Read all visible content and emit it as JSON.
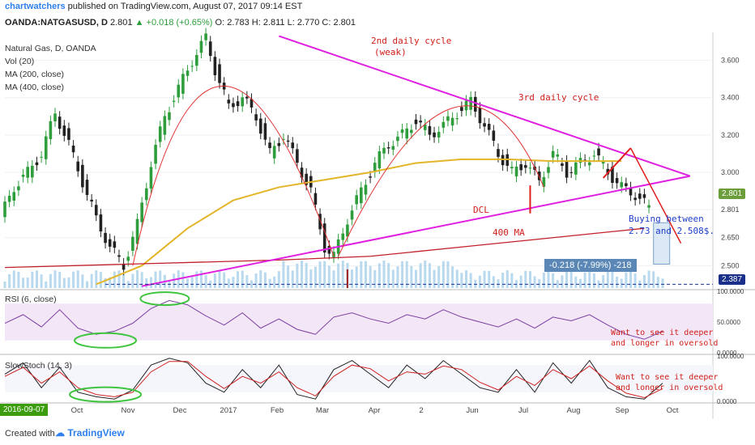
{
  "header": {
    "author": "chartwatchers",
    "published": "published on TradingView.com, August 07, 2017 09:14 EST",
    "symbol": "OANDA:NATGASUSD, D",
    "last": "2.801",
    "change": "+0.018 (+0.65%)",
    "ohlc": "O: 2.783 H: 2.811 L: 2.770 C: 2.801"
  },
  "legend": {
    "title": "Natural Gas, D, OANDA",
    "vol": "Vol (20)",
    "ma200": "MA (200, close)",
    "ma400": "MA (400, close)"
  },
  "annotations": {
    "cycle2": "2nd daily cycle",
    "cycle2b": "(weak)",
    "cycle3": "3rd daily cycle",
    "dcl": "DCL",
    "ma400": "400 MA",
    "buy1": "Buying between",
    "buy2": "2.73 and 2.508$.",
    "rsi_note1": "Want to see it deeper",
    "rsi_note2": "and longer in oversold",
    "stoch_note1": "Want to see it deeper",
    "stoch_note2": "and longer in oversold"
  },
  "measure_label": "-0.218 (-7.99%) -218",
  "price_tag_last": "2.801",
  "price_tag_low": "2.387",
  "rsi_label": "RSI (6, close)",
  "stoch_label": "SlowStoch (14, 3)",
  "date_box": "2016-09-07",
  "footer": {
    "created": "Created with",
    "brand": "TradingView"
  },
  "colors": {
    "triangle": "#e020e0",
    "cycle": "#e03030",
    "ma200": "#e3b52a",
    "ma400": "#c0202a",
    "candle_up": "#2e9d3b",
    "candle_down": "#222222",
    "volume": "#a7cfea",
    "rsi": "#7a3fa0"
  },
  "chart_data": [
    {
      "type": "candlestick",
      "title": "Natural Gas, D, OANDA",
      "x_ticks": [
        "Oct",
        "Nov",
        "Dec",
        "2017",
        "Feb",
        "Mar",
        "Apr",
        "2",
        "Jun",
        "Jul",
        "Aug",
        "Sep",
        "Oct"
      ],
      "y_ticks": [
        2.5,
        2.65,
        2.8,
        3.0,
        3.2,
        3.4,
        3.6
      ],
      "y_tick_labels": [
        "2.500",
        "2.650",
        "2.801",
        "3.000",
        "3.200",
        "3.400",
        "3.600"
      ],
      "ylim": [
        2.38,
        3.75
      ],
      "series": [
        {
          "name": "Natural Gas",
          "points": [
            [
              0,
              2.76
            ],
            [
              3,
              2.92
            ],
            [
              6,
              3.0
            ],
            [
              9,
              3.1
            ],
            [
              12,
              3.32
            ],
            [
              15,
              3.15
            ],
            [
              18,
              2.95
            ],
            [
              21,
              2.75
            ],
            [
              24,
              2.6
            ],
            [
              27,
              2.5
            ],
            [
              30,
              2.72
            ],
            [
              33,
              3.05
            ],
            [
              36,
              3.3
            ],
            [
              39,
              3.45
            ],
            [
              42,
              3.6
            ],
            [
              45,
              3.72
            ],
            [
              47,
              3.55
            ],
            [
              50,
              3.35
            ],
            [
              53,
              3.4
            ],
            [
              56,
              3.3
            ],
            [
              59,
              3.1
            ],
            [
              62,
              3.2
            ],
            [
              65,
              3.05
            ],
            [
              68,
              2.9
            ],
            [
              71,
              2.6
            ],
            [
              73,
              2.55
            ],
            [
              76,
              2.75
            ],
            [
              79,
              2.9
            ],
            [
              82,
              3.05
            ],
            [
              85,
              3.15
            ],
            [
              88,
              3.2
            ],
            [
              91,
              3.28
            ],
            [
              94,
              3.2
            ],
            [
              97,
              3.25
            ],
            [
              100,
              3.32
            ],
            [
              103,
              3.38
            ],
            [
              106,
              3.25
            ],
            [
              109,
              3.1
            ],
            [
              112,
              3.0
            ],
            [
              115,
              3.05
            ],
            [
              118,
              2.95
            ],
            [
              121,
              3.1
            ],
            [
              124,
              3.0
            ],
            [
              127,
              3.05
            ],
            [
              130,
              3.1
            ],
            [
              133,
              3.0
            ],
            [
              136,
              2.92
            ],
            [
              139,
              2.88
            ],
            [
              142,
              2.81
            ]
          ]
        },
        {
          "name": "MA (200, close)",
          "points": [
            [
              20,
              2.4
            ],
            [
              30,
              2.5
            ],
            [
              40,
              2.7
            ],
            [
              50,
              2.85
            ],
            [
              60,
              2.92
            ],
            [
              70,
              2.96
            ],
            [
              80,
              3.0
            ],
            [
              90,
              3.05
            ],
            [
              100,
              3.07
            ],
            [
              110,
              3.07
            ],
            [
              120,
              3.06
            ],
            [
              130,
              3.06
            ],
            [
              135,
              3.06
            ]
          ]
        },
        {
          "name": "MA (400, close)",
          "points": [
            [
              0,
              2.49
            ],
            [
              30,
              2.51
            ],
            [
              60,
              2.53
            ],
            [
              80,
              2.55
            ],
            [
              100,
              2.6
            ],
            [
              120,
              2.65
            ],
            [
              140,
              2.7
            ]
          ]
        }
      ],
      "trendlines": [
        {
          "from": [
            30,
            2.39
          ],
          "to": [
            150,
            2.98
          ]
        },
        {
          "from": [
            60,
            3.73
          ],
          "to": [
            150,
            2.98
          ]
        }
      ]
    },
    {
      "type": "line",
      "title": "RSI (6, close)",
      "y_ticks": [
        0,
        50,
        100
      ],
      "y_tick_labels": [
        "0.0000",
        "50.0000",
        "100.0000"
      ],
      "ylim": [
        0,
        100
      ],
      "series": [
        {
          "name": "RSI",
          "points": [
            [
              0,
              48
            ],
            [
              4,
              62
            ],
            [
              8,
              42
            ],
            [
              12,
              70
            ],
            [
              16,
              40
            ],
            [
              20,
              30
            ],
            [
              24,
              35
            ],
            [
              28,
              48
            ],
            [
              32,
              72
            ],
            [
              36,
              85
            ],
            [
              40,
              78
            ],
            [
              44,
              60
            ],
            [
              48,
              45
            ],
            [
              52,
              65
            ],
            [
              56,
              40
            ],
            [
              60,
              55
            ],
            [
              64,
              38
            ],
            [
              68,
              30
            ],
            [
              72,
              58
            ],
            [
              76,
              65
            ],
            [
              80,
              55
            ],
            [
              84,
              48
            ],
            [
              88,
              62
            ],
            [
              92,
              55
            ],
            [
              96,
              70
            ],
            [
              100,
              58
            ],
            [
              104,
              50
            ],
            [
              108,
              42
            ],
            [
              112,
              55
            ],
            [
              116,
              40
            ],
            [
              120,
              58
            ],
            [
              124,
              52
            ],
            [
              128,
              62
            ],
            [
              132,
              45
            ],
            [
              136,
              30
            ],
            [
              140,
              22
            ],
            [
              144,
              35
            ]
          ]
        }
      ]
    },
    {
      "type": "line",
      "title": "SlowStoch (14, 3)",
      "y_ticks": [
        0,
        100
      ],
      "y_tick_labels": [
        "0.0000",
        "100.0000"
      ],
      "ylim": [
        0,
        100
      ],
      "series": [
        {
          "name": "%K",
          "points": [
            [
              0,
              60
            ],
            [
              4,
              85
            ],
            [
              8,
              30
            ],
            [
              12,
              75
            ],
            [
              16,
              20
            ],
            [
              20,
              10
            ],
            [
              24,
              5
            ],
            [
              28,
              25
            ],
            [
              32,
              80
            ],
            [
              36,
              95
            ],
            [
              40,
              85
            ],
            [
              44,
              40
            ],
            [
              48,
              20
            ],
            [
              52,
              70
            ],
            [
              56,
              30
            ],
            [
              60,
              80
            ],
            [
              64,
              15
            ],
            [
              68,
              5
            ],
            [
              72,
              70
            ],
            [
              76,
              90
            ],
            [
              80,
              60
            ],
            [
              84,
              30
            ],
            [
              88,
              80
            ],
            [
              92,
              50
            ],
            [
              96,
              90
            ],
            [
              100,
              60
            ],
            [
              104,
              30
            ],
            [
              108,
              20
            ],
            [
              112,
              70
            ],
            [
              116,
              20
            ],
            [
              120,
              85
            ],
            [
              124,
              40
            ],
            [
              128,
              90
            ],
            [
              132,
              30
            ],
            [
              136,
              10
            ],
            [
              140,
              5
            ],
            [
              144,
              40
            ]
          ]
        },
        {
          "name": "%D",
          "points": [
            [
              0,
              55
            ],
            [
              4,
              75
            ],
            [
              8,
              40
            ],
            [
              12,
              65
            ],
            [
              16,
              30
            ],
            [
              20,
              15
            ],
            [
              24,
              10
            ],
            [
              28,
              20
            ],
            [
              32,
              65
            ],
            [
              36,
              88
            ],
            [
              40,
              88
            ],
            [
              44,
              55
            ],
            [
              48,
              28
            ],
            [
              52,
              55
            ],
            [
              56,
              40
            ],
            [
              60,
              65
            ],
            [
              64,
              30
            ],
            [
              68,
              12
            ],
            [
              72,
              55
            ],
            [
              76,
              80
            ],
            [
              80,
              72
            ],
            [
              84,
              45
            ],
            [
              88,
              65
            ],
            [
              92,
              60
            ],
            [
              96,
              78
            ],
            [
              100,
              70
            ],
            [
              104,
              42
            ],
            [
              108,
              25
            ],
            [
              112,
              55
            ],
            [
              116,
              35
            ],
            [
              120,
              70
            ],
            [
              124,
              50
            ],
            [
              128,
              78
            ],
            [
              132,
              45
            ],
            [
              136,
              18
            ],
            [
              140,
              8
            ],
            [
              144,
              28
            ]
          ]
        }
      ]
    }
  ]
}
